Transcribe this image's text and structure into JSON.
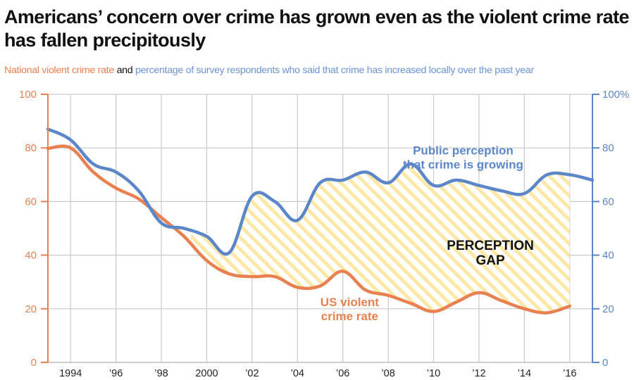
{
  "header": {
    "title": "Americans’ concern over crime has grown even as the violent crime rate has fallen precipitously",
    "subtitle_part1": "National violent crime rate",
    "subtitle_part2": " and ",
    "subtitle_part3": "percentage of survey respondents who said that crime has increased locally over the past year"
  },
  "colors": {
    "crime_rate": "#e8804f",
    "perception": "#5b86c9",
    "gap_fill": "#fbe8a6",
    "grid": "#c9c9c9"
  },
  "chart_data": {
    "type": "line",
    "title": "Americans’ concern over crime has grown even as the violent crime rate has fallen precipitously",
    "subtitle": "National violent crime rate and percentage of survey respondents who said that crime has increased locally over the past year",
    "xlabel": "",
    "ylabel_left": "",
    "ylabel_right": "",
    "x": [
      1993,
      1994,
      1995,
      1996,
      1997,
      1998,
      1999,
      2000,
      2001,
      2002,
      2003,
      2004,
      2005,
      2006,
      2007,
      2008,
      2009,
      2010,
      2011,
      2012,
      2013,
      2014,
      2015,
      2016,
      2017
    ],
    "xlim": [
      1993,
      2017
    ],
    "ylim": [
      0,
      100
    ],
    "grid": true,
    "x_ticks": [
      {
        "value": 1994,
        "label": "1994"
      },
      {
        "value": 1996,
        "label": "’96"
      },
      {
        "value": 1998,
        "label": "’98"
      },
      {
        "value": 2000,
        "label": "2000"
      },
      {
        "value": 2002,
        "label": "’02"
      },
      {
        "value": 2004,
        "label": "’04"
      },
      {
        "value": 2006,
        "label": "’06"
      },
      {
        "value": 2008,
        "label": "’08"
      },
      {
        "value": 2010,
        "label": "’10"
      },
      {
        "value": 2012,
        "label": "’12"
      },
      {
        "value": 2014,
        "label": "’14"
      },
      {
        "value": 2016,
        "label": "’16"
      }
    ],
    "y_ticks_left": [
      {
        "value": 0,
        "label": "0"
      },
      {
        "value": 20,
        "label": "20"
      },
      {
        "value": 40,
        "label": "40"
      },
      {
        "value": 60,
        "label": "60"
      },
      {
        "value": 80,
        "label": "80"
      },
      {
        "value": 100,
        "label": "100"
      }
    ],
    "y_ticks_right": [
      {
        "value": 0,
        "label": "0"
      },
      {
        "value": 20,
        "label": "20"
      },
      {
        "value": 40,
        "label": "40"
      },
      {
        "value": 60,
        "label": "60"
      },
      {
        "value": 80,
        "label": "80"
      },
      {
        "value": 100,
        "label": "100%"
      }
    ],
    "series": [
      {
        "name": "US violent crime rate",
        "axis": "left",
        "color": "#e8804f",
        "values": [
          79.8,
          80,
          71,
          65,
          61,
          54,
          47,
          38,
          33,
          32,
          32,
          28,
          28.5,
          34,
          27,
          25,
          22,
          19,
          22.5,
          26,
          23,
          20,
          18.5,
          21,
          null
        ]
      },
      {
        "name": "Public perception that crime is growing",
        "axis": "right",
        "color": "#5b86c9",
        "values": [
          87,
          83,
          74,
          71,
          64,
          52,
          50,
          47,
          41,
          62,
          60,
          53,
          67,
          68,
          71,
          67,
          74,
          66,
          68,
          66,
          64,
          63,
          70,
          70,
          68
        ]
      }
    ],
    "shaded_region": {
      "name": "Perception gap",
      "from": 1999.3,
      "to": 2016
    },
    "annotations": [
      {
        "text_lines": [
          "Public perception",
          "that crime is growing"
        ],
        "series": "perception",
        "x": 2011.3,
        "y": 77.5
      },
      {
        "text_lines": [
          "US violent",
          "crime rate"
        ],
        "series": "crime_rate",
        "x": 2006.3,
        "y": 21
      },
      {
        "text_lines": [
          "PERCEPTION",
          "GAP"
        ],
        "series": "gap",
        "x": 2012.5,
        "y": 42
      }
    ]
  }
}
